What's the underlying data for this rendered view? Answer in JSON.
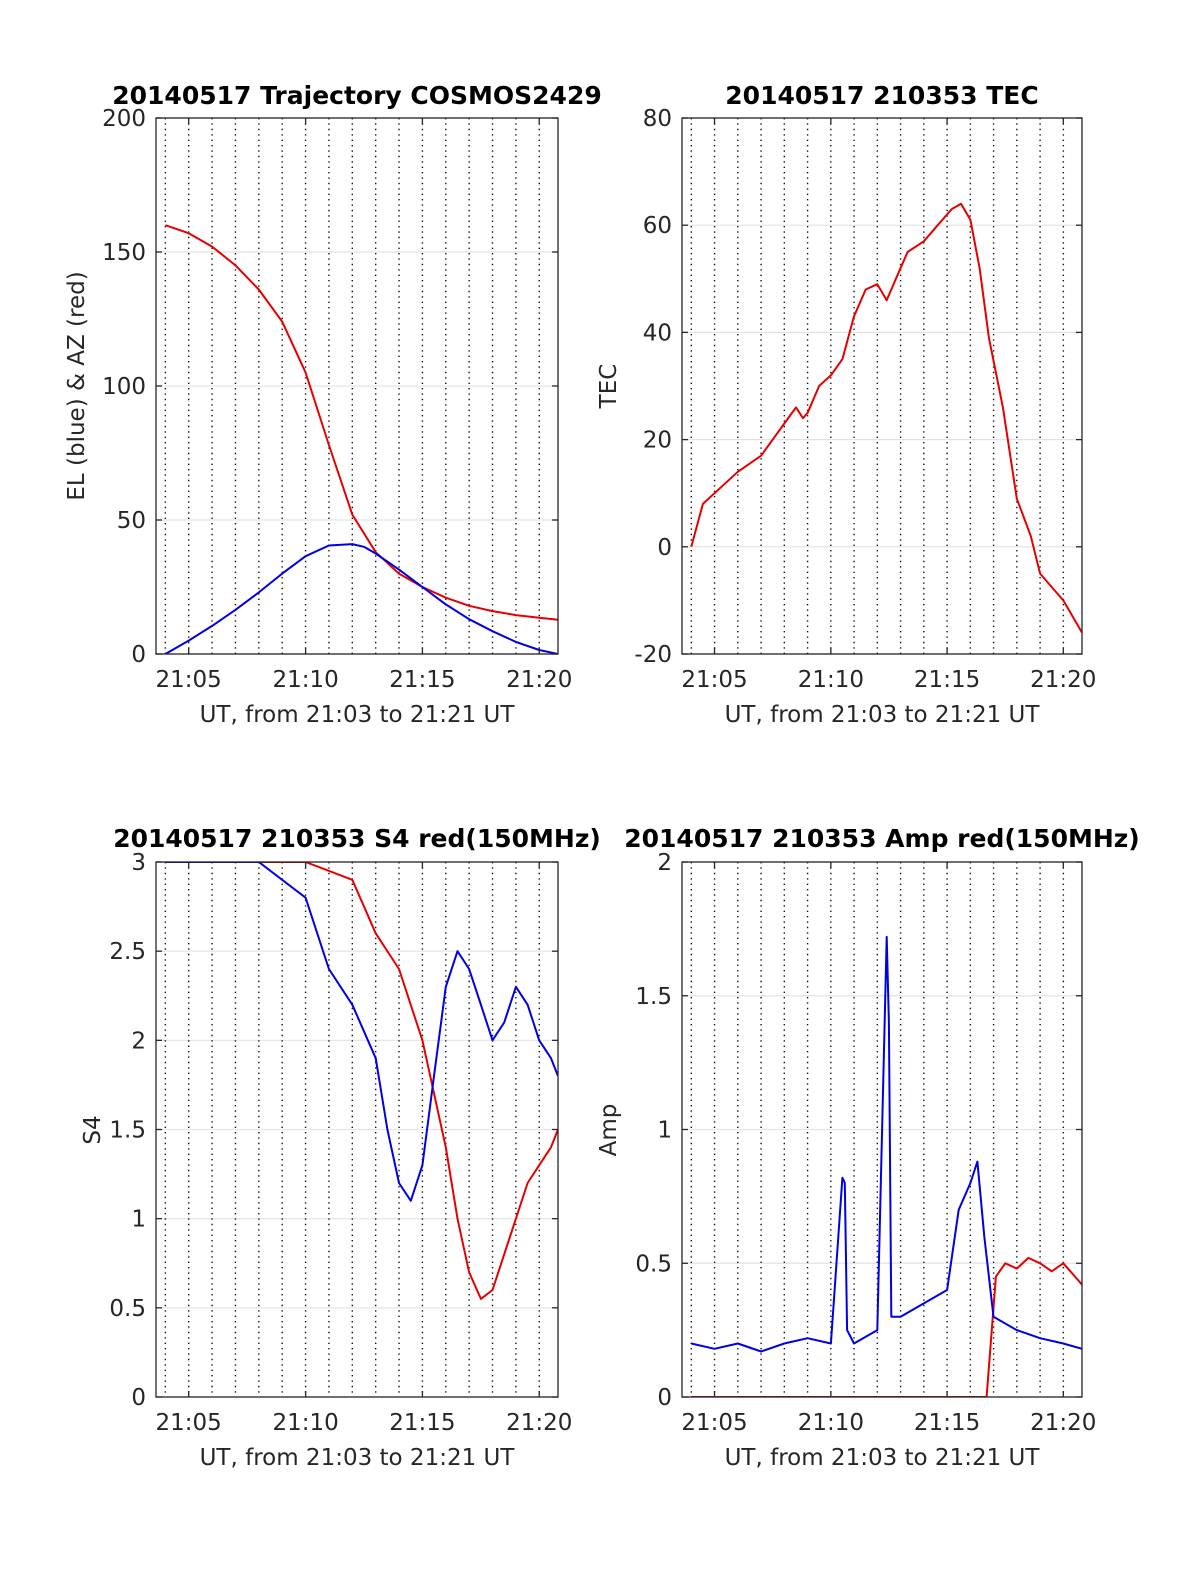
{
  "chart_data": [
    {
      "type": "line",
      "title": "20140517 Trajectory COSMOS2429",
      "xlabel": "UT, from 21:03 to 21:21 UT",
      "ylabel": "EL (blue) & AZ (red)",
      "xlim": [
        21.06,
        21.3467
      ],
      "ylim": [
        0,
        200
      ],
      "xticks": [
        21.0833,
        21.1667,
        21.25,
        21.3333
      ],
      "xtick_labels": [
        "21:05",
        "21:10",
        "21:15",
        "21:20"
      ],
      "yticks": [
        0,
        50,
        100,
        150,
        200
      ],
      "ytick_labels": [
        "0",
        "50",
        "100",
        "150",
        "200"
      ],
      "grid": "horizontal solid, vertical dotted every minute",
      "series": [
        {
          "color": "#e60000",
          "x": [
            21.0667,
            21.0833,
            21.1,
            21.1167,
            21.1333,
            21.15,
            21.1667,
            21.1833,
            21.2,
            21.2167,
            21.2333,
            21.25,
            21.2667,
            21.2833,
            21.3,
            21.3167,
            21.3333,
            21.3467
          ],
          "y": [
            160,
            157,
            152,
            145,
            136,
            124,
            105,
            78,
            52,
            38,
            30,
            25,
            21,
            18,
            16,
            14.5,
            13.5,
            12.8
          ]
        },
        {
          "color": "#0000e6",
          "x": [
            21.0667,
            21.0833,
            21.1,
            21.1167,
            21.1333,
            21.15,
            21.1667,
            21.1833,
            21.2,
            21.2083,
            21.2167,
            21.2333,
            21.25,
            21.2667,
            21.2833,
            21.3,
            21.3167,
            21.3333,
            21.3467
          ],
          "y": [
            0,
            5,
            10.5,
            16.5,
            23,
            30,
            36.5,
            40.5,
            41,
            40,
            37.5,
            31.5,
            25,
            18.5,
            13,
            8.5,
            4.5,
            1.5,
            0
          ]
        }
      ]
    },
    {
      "type": "line",
      "title": "20140517 210353 TEC",
      "xlabel": "UT, from 21:03 to 21:21 UT",
      "ylabel": "TEC",
      "xlim": [
        21.06,
        21.3467
      ],
      "ylim": [
        -20,
        80
      ],
      "xticks": [
        21.0833,
        21.1667,
        21.25,
        21.3333
      ],
      "xtick_labels": [
        "21:05",
        "21:10",
        "21:15",
        "21:20"
      ],
      "yticks": [
        -20,
        0,
        20,
        40,
        60,
        80
      ],
      "ytick_labels": [
        "-20",
        "0",
        "20",
        "40",
        "60",
        "80"
      ],
      "grid": "horizontal solid, vertical dotted every minute",
      "series": [
        {
          "color": "#e60000",
          "x": [
            21.0667,
            21.075,
            21.0833,
            21.1,
            21.1167,
            21.1333,
            21.1417,
            21.1467,
            21.15,
            21.1583,
            21.1667,
            21.175,
            21.1833,
            21.1917,
            21.2,
            21.2067,
            21.2133,
            21.2217,
            21.2333,
            21.2433,
            21.2533,
            21.26,
            21.2667,
            21.2733,
            21.28,
            21.29,
            21.3,
            21.31,
            21.3167,
            21.3333,
            21.3467
          ],
          "y": [
            0,
            8,
            10,
            14,
            17,
            23,
            26,
            24,
            25,
            30,
            32,
            35,
            43,
            48,
            49,
            46,
            50,
            55,
            57,
            60,
            63,
            64,
            61,
            52,
            39,
            26,
            9,
            2,
            -5,
            -10,
            -16
          ]
        }
      ]
    },
    {
      "type": "line",
      "title": "20140517 210353 S4 red(150MHz)",
      "xlabel": "UT, from 21:03 to 21:21 UT",
      "ylabel": "S4",
      "xlim": [
        21.06,
        21.3467
      ],
      "ylim": [
        0,
        3
      ],
      "xticks": [
        21.0833,
        21.1667,
        21.25,
        21.3333
      ],
      "xtick_labels": [
        "21:05",
        "21:10",
        "21:15",
        "21:20"
      ],
      "yticks": [
        0,
        0.5,
        1,
        1.5,
        2,
        2.5,
        3
      ],
      "ytick_labels": [
        "0",
        "0.5",
        "1",
        "1.5",
        "2",
        "2.5",
        "3"
      ],
      "grid": "horizontal solid, vertical dotted every minute",
      "series": [
        {
          "color": "#e60000",
          "x": [
            21.0667,
            21.1667,
            21.2,
            21.2167,
            21.2333,
            21.25,
            21.2667,
            21.275,
            21.2833,
            21.2917,
            21.3,
            21.3083,
            21.3167,
            21.325,
            21.3333,
            21.3417,
            21.3467
          ],
          "y": [
            3,
            3,
            2.9,
            2.6,
            2.4,
            2.0,
            1.4,
            1.0,
            0.7,
            0.55,
            0.6,
            0.8,
            1.0,
            1.2,
            1.3,
            1.4,
            1.5
          ]
        },
        {
          "color": "#0000e6",
          "x": [
            21.0667,
            21.1333,
            21.1667,
            21.1833,
            21.2,
            21.2167,
            21.225,
            21.2333,
            21.2417,
            21.25,
            21.2583,
            21.2667,
            21.275,
            21.2833,
            21.2917,
            21.3,
            21.3083,
            21.3167,
            21.325,
            21.3333,
            21.3417,
            21.3467
          ],
          "y": [
            3,
            3,
            2.8,
            2.4,
            2.2,
            1.9,
            1.5,
            1.2,
            1.1,
            1.3,
            1.8,
            2.3,
            2.5,
            2.4,
            2.2,
            2.0,
            2.1,
            2.3,
            2.2,
            2.0,
            1.9,
            1.8
          ]
        }
      ]
    },
    {
      "type": "line",
      "title": "20140517 210353 Amp red(150MHz)",
      "xlabel": "UT, from 21:03 to 21:21 UT",
      "ylabel": "Amp",
      "xlim": [
        21.06,
        21.3467
      ],
      "ylim": [
        0,
        2
      ],
      "xticks": [
        21.0833,
        21.1667,
        21.25,
        21.3333
      ],
      "xtick_labels": [
        "21:05",
        "21:10",
        "21:15",
        "21:20"
      ],
      "yticks": [
        0,
        0.5,
        1,
        1.5,
        2
      ],
      "ytick_labels": [
        "0",
        "0.5",
        "1",
        "1.5",
        "2"
      ],
      "grid": "horizontal solid, vertical dotted every minute",
      "series": [
        {
          "color": "#e60000",
          "x": [
            21.0667,
            21.2783,
            21.285,
            21.2917,
            21.3,
            21.3083,
            21.3167,
            21.325,
            21.3333,
            21.3417,
            21.3467
          ],
          "y": [
            0,
            0,
            0.45,
            0.5,
            0.48,
            0.52,
            0.5,
            0.47,
            0.5,
            0.45,
            0.42
          ]
        },
        {
          "color": "#0000e6",
          "x": [
            21.0667,
            21.0833,
            21.1,
            21.1167,
            21.1333,
            21.15,
            21.1667,
            21.175,
            21.1767,
            21.1783,
            21.1833,
            21.2,
            21.2067,
            21.2083,
            21.21,
            21.2167,
            21.2333,
            21.25,
            21.2583,
            21.2667,
            21.2717,
            21.2767,
            21.2833,
            21.3,
            21.3167,
            21.3333,
            21.3467
          ],
          "y": [
            0.2,
            0.18,
            0.2,
            0.17,
            0.2,
            0.22,
            0.2,
            0.82,
            0.8,
            0.25,
            0.2,
            0.25,
            1.72,
            1.4,
            0.3,
            0.3,
            0.35,
            0.4,
            0.7,
            0.8,
            0.88,
            0.6,
            0.3,
            0.25,
            0.22,
            0.2,
            0.18
          ]
        }
      ]
    }
  ]
}
